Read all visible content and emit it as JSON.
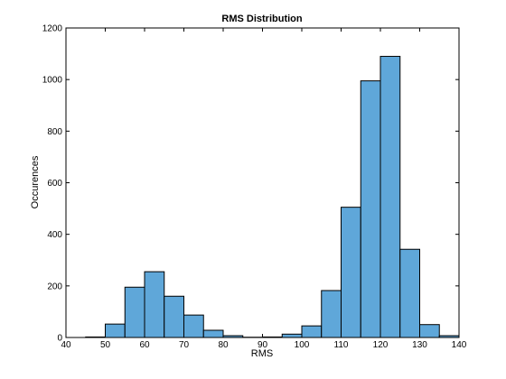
{
  "chart_data": {
    "type": "bar",
    "title": "RMS Distribution",
    "xlabel": "RMS",
    "ylabel": "Occurences",
    "xlim": [
      40,
      140
    ],
    "ylim": [
      0,
      1200
    ],
    "xticks": [
      40,
      50,
      60,
      70,
      80,
      90,
      100,
      110,
      120,
      130,
      140
    ],
    "yticks": [
      0,
      200,
      400,
      600,
      800,
      1000,
      1200
    ],
    "bar_color": "#5fa7d9",
    "grid": false,
    "bins": [
      {
        "x0": 45,
        "x1": 50,
        "value": 2
      },
      {
        "x0": 50,
        "x1": 55,
        "value": 52
      },
      {
        "x0": 55,
        "x1": 60,
        "value": 195
      },
      {
        "x0": 60,
        "x1": 65,
        "value": 255
      },
      {
        "x0": 65,
        "x1": 70,
        "value": 160
      },
      {
        "x0": 70,
        "x1": 75,
        "value": 87
      },
      {
        "x0": 75,
        "x1": 80,
        "value": 28
      },
      {
        "x0": 80,
        "x1": 85,
        "value": 7
      },
      {
        "x0": 85,
        "x1": 90,
        "value": 1
      },
      {
        "x0": 90,
        "x1": 95,
        "value": 2
      },
      {
        "x0": 95,
        "x1": 100,
        "value": 13
      },
      {
        "x0": 100,
        "x1": 105,
        "value": 45
      },
      {
        "x0": 105,
        "x1": 110,
        "value": 182
      },
      {
        "x0": 110,
        "x1": 115,
        "value": 505
      },
      {
        "x0": 115,
        "x1": 120,
        "value": 995
      },
      {
        "x0": 120,
        "x1": 125,
        "value": 1090
      },
      {
        "x0": 125,
        "x1": 130,
        "value": 342
      },
      {
        "x0": 130,
        "x1": 135,
        "value": 50
      },
      {
        "x0": 135,
        "x1": 140,
        "value": 7
      }
    ]
  }
}
